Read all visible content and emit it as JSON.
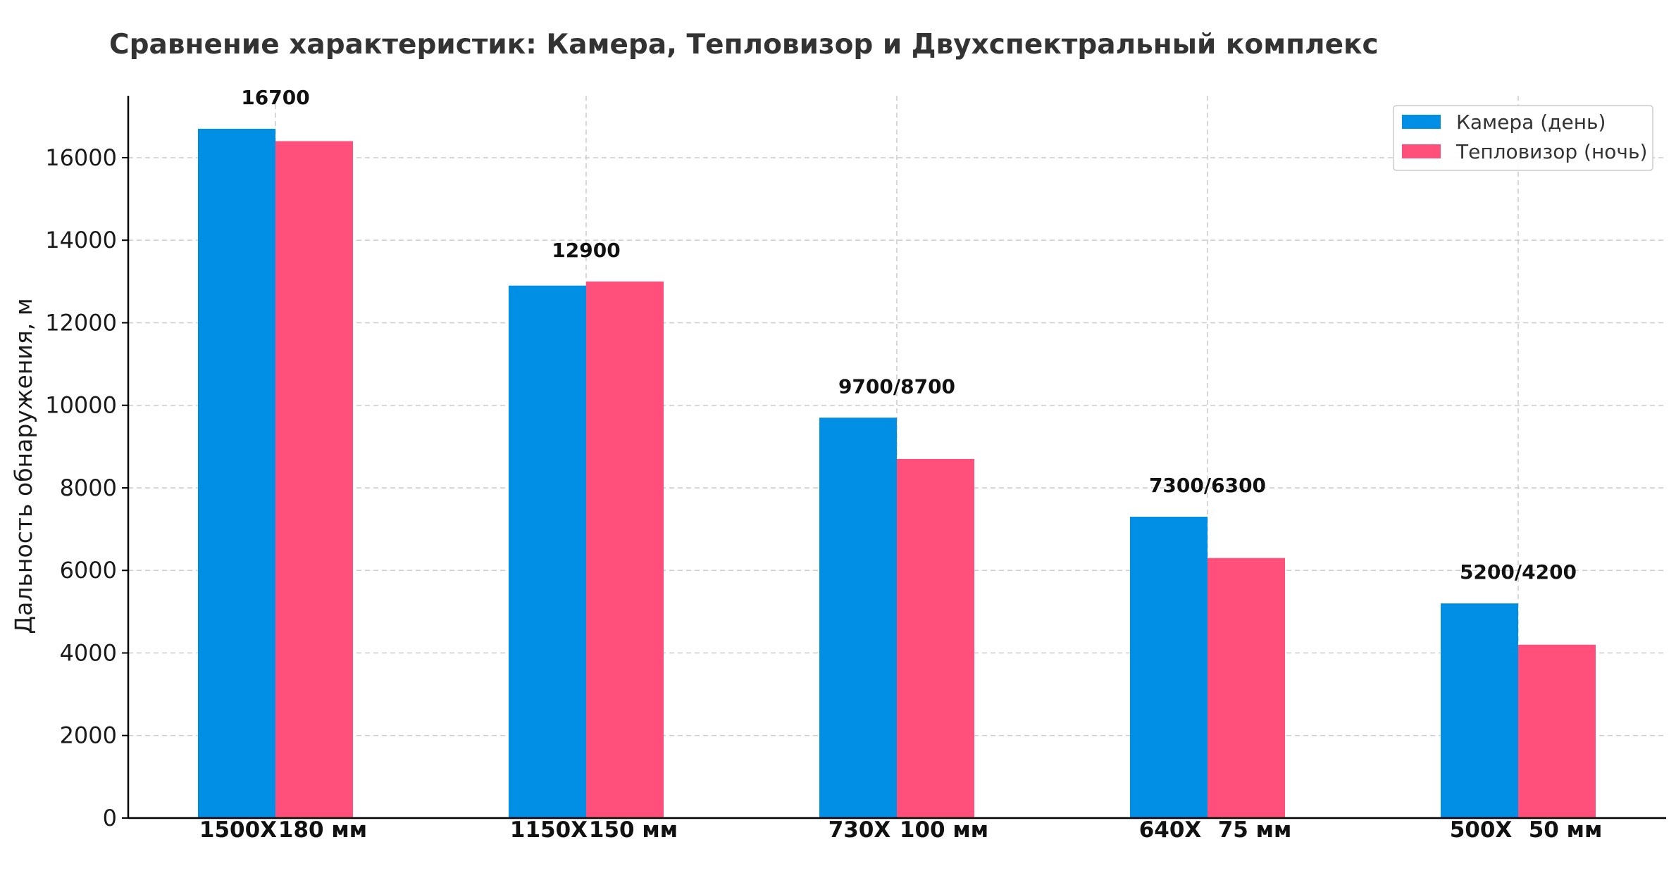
{
  "chart_data": {
    "type": "bar",
    "title": "Сравнение характеристик: Камера, Тепловизор и Двухспектральный комплекс",
    "xlabel": "",
    "ylabel": "Дальность обнаружения, м",
    "ylim": [
      0,
      17500
    ],
    "yticks": [
      0,
      2000,
      4000,
      6000,
      8000,
      10000,
      12000,
      14000,
      16000
    ],
    "grid": true,
    "legend_position": "top-right",
    "categories": [
      {
        "camera_label": "1500X",
        "thermal_label": "180 мм",
        "annotation": "16700"
      },
      {
        "camera_label": "1150X",
        "thermal_label": "150 мм",
        "annotation": "12900"
      },
      {
        "camera_label": "730X",
        "thermal_label": "100 мм",
        "annotation": "9700/8700"
      },
      {
        "camera_label": "640X",
        "thermal_label": "75 мм",
        "annotation": "7300/6300"
      },
      {
        "camera_label": "500X",
        "thermal_label": "50 мм",
        "annotation": "5200/4200"
      }
    ],
    "series": [
      {
        "name": "Камера (день)",
        "color": "#008fe5",
        "values": [
          16700,
          12900,
          9700,
          7300,
          5200
        ]
      },
      {
        "name": "Тепловизор (ночь)",
        "color": "#ff4f7a",
        "values": [
          16400,
          13000,
          8700,
          6300,
          4200
        ]
      }
    ]
  }
}
